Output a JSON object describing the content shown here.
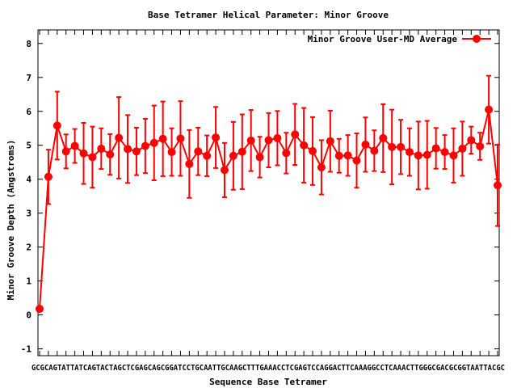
{
  "chart_data": {
    "type": "line",
    "title": "Base Tetramer Helical Parameter: Minor Groove",
    "xlabel": "Sequence Base Tetramer",
    "ylabel": "Minor Groove Depth (Angstroms)",
    "ylim": [
      -1.2,
      8.4
    ],
    "yticks": [
      -1,
      0,
      1,
      2,
      3,
      4,
      5,
      6,
      7,
      8
    ],
    "xtick_first": "GC",
    "xtick_last": "GC",
    "x_categories_compressed": "GCGCAGTATTATCAGTACTAGCTCGAGCAGCGGATCCTGCAATTGCAAGCTTTGAAACCTCGAGTCCAGGACTTCAAAGGCCTCAAACTTGGGCGACGCGGTAATTACGC",
    "grid": false,
    "legend": "top-right",
    "colors": {
      "series": "#ff0000",
      "axis": "#000000"
    },
    "series": [
      {
        "name": "Minor Groove User-MD Average",
        "values": [
          0.18,
          4.07,
          5.58,
          4.82,
          4.98,
          4.76,
          4.65,
          4.9,
          4.73,
          5.22,
          4.89,
          4.82,
          4.98,
          5.07,
          5.19,
          4.8,
          5.2,
          4.45,
          4.82,
          4.69,
          5.23,
          4.27,
          4.69,
          4.81,
          5.14,
          4.65,
          5.15,
          5.21,
          4.77,
          5.32,
          5.0,
          4.83,
          4.35,
          5.12,
          4.69,
          4.7,
          4.55,
          5.02,
          4.84,
          5.21,
          4.95,
          4.95,
          4.8,
          4.7,
          4.72,
          4.91,
          4.8,
          4.7,
          4.9,
          5.15,
          4.97,
          6.05,
          3.82
        ],
        "errors": [
          0.0,
          0.8,
          1.0,
          0.5,
          0.5,
          0.9,
          0.9,
          0.6,
          0.6,
          1.2,
          1.0,
          0.7,
          0.8,
          1.1,
          1.1,
          0.7,
          1.1,
          1.0,
          0.7,
          0.6,
          0.9,
          0.8,
          1.0,
          1.1,
          0.9,
          0.6,
          0.8,
          0.8,
          0.6,
          0.9,
          1.1,
          1.0,
          0.8,
          0.9,
          0.5,
          0.6,
          0.8,
          0.8,
          0.6,
          1.0,
          1.1,
          0.8,
          0.7,
          1.0,
          1.0,
          0.6,
          0.5,
          0.8,
          0.8,
          0.4,
          0.4,
          1.0,
          1.2
        ]
      }
    ]
  }
}
